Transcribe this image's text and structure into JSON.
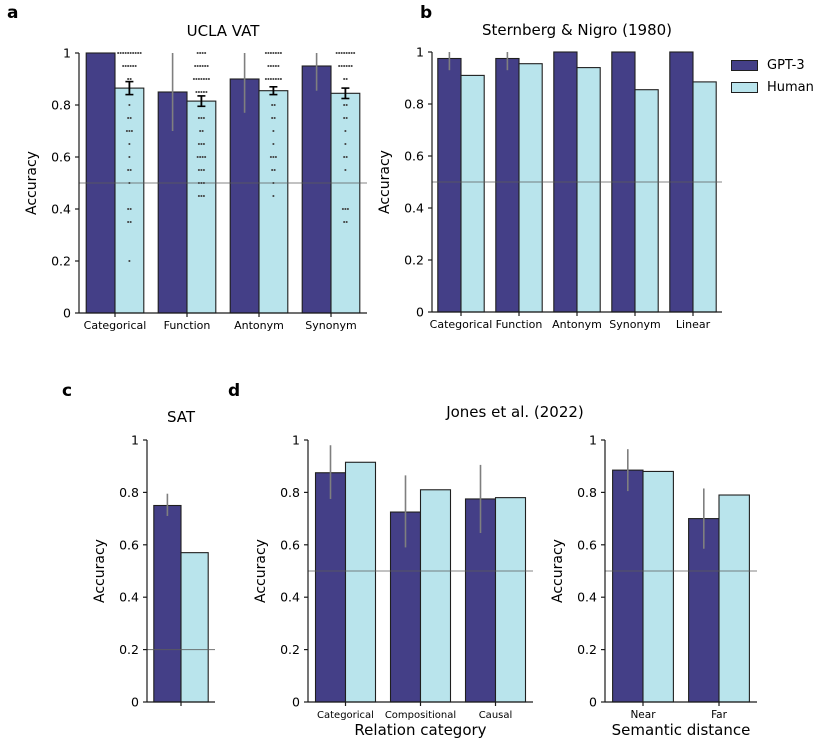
{
  "figure": {
    "panel_labels": {
      "a": "a",
      "b": "b",
      "c": "c",
      "d": "d"
    },
    "legend": {
      "items": [
        {
          "label": "GPT-3",
          "color_key": "gpt3"
        },
        {
          "label": "Human",
          "color_key": "human"
        }
      ]
    },
    "texts": [
      {
        "id": "d-title",
        "text": "Jones et al. (2022)"
      }
    ],
    "colors": {
      "gpt3": "#443f87",
      "human": "#b9e4ec",
      "bar_edge": "#1f1f1f",
      "gpt3_error": "#7f7f7f",
      "human_error": "#000000",
      "chance_line": "#5c5c5c",
      "jitter_dot": "#3f3f3f",
      "axis": "#1a1a1a",
      "text": "#000000"
    }
  },
  "chart_data": [
    {
      "id": "a",
      "type": "bar",
      "title": "UCLA VAT",
      "ylabel": "Accuracy",
      "xlabel": "",
      "ylim": [
        0,
        1
      ],
      "ytick_values": [
        0,
        0.2,
        0.4,
        0.6,
        0.8,
        1
      ],
      "ytick_labels": [
        "0",
        "0.2",
        "0.4",
        "0.6",
        "0.8",
        "1"
      ],
      "chance_line": 0.5,
      "grid": false,
      "categories": [
        "Categorical",
        "Function",
        "Antonym",
        "Synonym"
      ],
      "series": [
        {
          "name": "GPT-3",
          "key": "gpt3",
          "values": [
            1.0,
            0.85,
            0.9,
            0.95
          ],
          "err_lo": [
            null,
            0.7,
            0.77,
            0.855
          ],
          "err_hi": [
            null,
            1.0,
            1.0,
            1.0
          ],
          "err_style": "plain"
        },
        {
          "name": "Human",
          "key": "human",
          "values": [
            0.865,
            0.815,
            0.855,
            0.845
          ],
          "err_lo": [
            0.84,
            0.795,
            0.84,
            0.825
          ],
          "err_hi": [
            0.89,
            0.835,
            0.87,
            0.865
          ],
          "err_style": "capped"
        }
      ],
      "jitter": {
        "series_key": "human",
        "points": [
          [
            [
              1.0,
              10
            ],
            [
              0.95,
              6
            ],
            [
              0.9,
              2
            ],
            [
              0.8,
              1
            ],
            [
              0.75,
              2
            ],
            [
              0.7,
              3
            ],
            [
              0.65,
              1
            ],
            [
              0.6,
              1
            ],
            [
              0.55,
              2
            ],
            [
              0.5,
              1
            ],
            [
              0.4,
              2
            ],
            [
              0.35,
              2
            ],
            [
              0.2,
              1
            ]
          ],
          [
            [
              1.0,
              4
            ],
            [
              0.95,
              6
            ],
            [
              0.9,
              7
            ],
            [
              0.85,
              5
            ],
            [
              0.75,
              3
            ],
            [
              0.7,
              2
            ],
            [
              0.65,
              3
            ],
            [
              0.6,
              4
            ],
            [
              0.55,
              3
            ],
            [
              0.5,
              3
            ],
            [
              0.45,
              3
            ]
          ],
          [
            [
              1.0,
              7
            ],
            [
              0.95,
              5
            ],
            [
              0.9,
              7
            ],
            [
              0.8,
              2
            ],
            [
              0.75,
              2
            ],
            [
              0.7,
              1
            ],
            [
              0.65,
              1
            ],
            [
              0.6,
              3
            ],
            [
              0.55,
              2
            ],
            [
              0.5,
              1
            ],
            [
              0.45,
              1
            ]
          ],
          [
            [
              1.0,
              8
            ],
            [
              0.95,
              6
            ],
            [
              0.9,
              2
            ],
            [
              0.8,
              2
            ],
            [
              0.75,
              2
            ],
            [
              0.7,
              1
            ],
            [
              0.65,
              1
            ],
            [
              0.6,
              2
            ],
            [
              0.55,
              1
            ],
            [
              0.4,
              3
            ],
            [
              0.35,
              2
            ]
          ]
        ]
      }
    },
    {
      "id": "b",
      "type": "bar",
      "title": "Sternberg & Nigro (1980)",
      "ylabel": "Accuracy",
      "xlabel": "",
      "ylim": [
        0,
        1
      ],
      "ytick_values": [
        0,
        0.2,
        0.4,
        0.6,
        0.8,
        1
      ],
      "ytick_labels": [
        "0",
        "0.2",
        "0.4",
        "0.6",
        "0.8",
        "1"
      ],
      "chance_line": 0.5,
      "grid": false,
      "categories": [
        "Categorical",
        "Function",
        "Antonym",
        "Synonym",
        "Linear"
      ],
      "series": [
        {
          "name": "GPT-3",
          "key": "gpt3",
          "values": [
            0.975,
            0.975,
            1.0,
            1.0,
            1.0
          ],
          "err_lo": [
            0.93,
            0.93,
            null,
            null,
            null
          ],
          "err_hi": [
            1.0,
            1.0,
            null,
            null,
            null
          ],
          "err_style": "plain"
        },
        {
          "name": "Human",
          "key": "human",
          "values": [
            0.91,
            0.955,
            0.94,
            0.855,
            0.885
          ],
          "err_lo": [
            null,
            null,
            null,
            null,
            null
          ],
          "err_hi": [
            null,
            null,
            null,
            null,
            null
          ],
          "err_style": "none"
        }
      ]
    },
    {
      "id": "c",
      "type": "bar",
      "title": "SAT",
      "ylabel": "Accuracy",
      "xlabel": "",
      "ylim": [
        0,
        1
      ],
      "ytick_values": [
        0,
        0.2,
        0.4,
        0.6,
        0.8,
        1
      ],
      "ytick_labels": [
        "0",
        "0.2",
        "0.4",
        "0.6",
        "0.8",
        "1"
      ],
      "chance_line": 0.2,
      "grid": false,
      "categories": [
        ""
      ],
      "series": [
        {
          "name": "GPT-3",
          "key": "gpt3",
          "values": [
            0.75
          ],
          "err_lo": [
            0.71
          ],
          "err_hi": [
            0.795
          ],
          "err_style": "plain"
        },
        {
          "name": "Human",
          "key": "human",
          "values": [
            0.57
          ],
          "err_lo": [
            null
          ],
          "err_hi": [
            null
          ],
          "err_style": "none"
        }
      ]
    },
    {
      "id": "dleft",
      "type": "bar",
      "title": "",
      "ylabel": "Accuracy",
      "xlabel": "Relation category",
      "ylim": [
        0,
        1
      ],
      "ytick_values": [
        0,
        0.2,
        0.4,
        0.6,
        0.8,
        1
      ],
      "ytick_labels": [
        "0",
        "0.2",
        "0.4",
        "0.6",
        "0.8",
        "1"
      ],
      "chance_line": 0.5,
      "grid": false,
      "categories": [
        "Categorical",
        "Compositional",
        "Causal"
      ],
      "series": [
        {
          "name": "GPT-3",
          "key": "gpt3",
          "values": [
            0.875,
            0.725,
            0.775
          ],
          "err_lo": [
            0.775,
            0.59,
            0.645
          ],
          "err_hi": [
            0.98,
            0.865,
            0.905
          ],
          "err_style": "plain"
        },
        {
          "name": "Human",
          "key": "human",
          "values": [
            0.915,
            0.81,
            0.78
          ],
          "err_lo": [
            null,
            null,
            null
          ],
          "err_hi": [
            null,
            null,
            null
          ],
          "err_style": "none"
        }
      ]
    },
    {
      "id": "dright",
      "type": "bar",
      "title": "",
      "ylabel": "Accuracy",
      "xlabel": "Semantic distance",
      "ylim": [
        0,
        1
      ],
      "ytick_values": [
        0,
        0.2,
        0.4,
        0.6,
        0.8,
        1
      ],
      "ytick_labels": [
        "0",
        "0.2",
        "0.4",
        "0.6",
        "0.8",
        "1"
      ],
      "chance_line": 0.5,
      "grid": false,
      "categories": [
        "Near",
        "Far"
      ],
      "series": [
        {
          "name": "GPT-3",
          "key": "gpt3",
          "values": [
            0.885,
            0.7
          ],
          "err_lo": [
            0.805,
            0.585
          ],
          "err_hi": [
            0.965,
            0.815
          ],
          "err_style": "plain"
        },
        {
          "name": "Human",
          "key": "human",
          "values": [
            0.88,
            0.79
          ],
          "err_lo": [
            null,
            null
          ],
          "err_hi": [
            null,
            null
          ],
          "err_style": "none"
        }
      ]
    }
  ]
}
